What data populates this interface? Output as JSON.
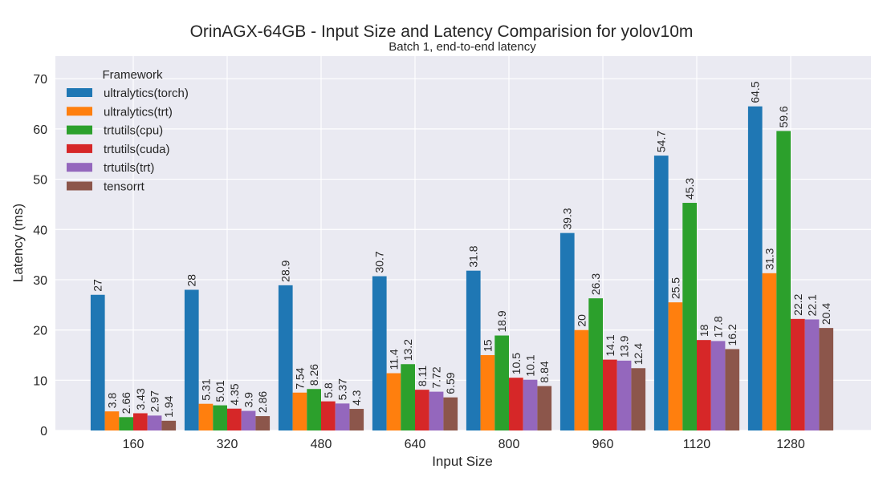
{
  "chart_data": {
    "type": "bar",
    "title": "OrinAGX-64GB - Input Size and Latency Comparision for yolov10m",
    "subtitle": "Batch 1, end-to-end latency",
    "xlabel": "Input Size",
    "ylabel": "Latency (ms)",
    "ylim": [
      0,
      74.5
    ],
    "yticks": [
      0,
      10,
      20,
      30,
      40,
      50,
      60,
      70
    ],
    "grid": true,
    "legend": {
      "title": "Framework",
      "placement": "top-left"
    },
    "categories": [
      "160",
      "320",
      "480",
      "640",
      "800",
      "960",
      "1120",
      "1280"
    ],
    "series": [
      {
        "name": "ultralytics(torch)",
        "color": "#1f77b4",
        "values": [
          27,
          28,
          28.9,
          30.7,
          31.8,
          39.3,
          54.7,
          64.5
        ],
        "labels": [
          "27",
          "28",
          "28.9",
          "30.7",
          "31.8",
          "39.3",
          "54.7",
          "64.5"
        ]
      },
      {
        "name": "ultralytics(trt)",
        "color": "#ff7f0e",
        "values": [
          3.8,
          5.31,
          7.54,
          11.4,
          15,
          20,
          25.5,
          31.3
        ],
        "labels": [
          "3.8",
          "5.31",
          "7.54",
          "11.4",
          "15",
          "20",
          "25.5",
          "31.3"
        ]
      },
      {
        "name": "trtutils(cpu)",
        "color": "#2ca02c",
        "values": [
          2.66,
          5.01,
          8.26,
          13.2,
          18.9,
          26.3,
          45.3,
          59.6
        ],
        "labels": [
          "2.66",
          "5.01",
          "8.26",
          "13.2",
          "18.9",
          "26.3",
          "45.3",
          "59.6"
        ]
      },
      {
        "name": "trtutils(cuda)",
        "color": "#d62728",
        "values": [
          3.43,
          4.35,
          5.8,
          8.11,
          10.5,
          14.1,
          18,
          22.2
        ],
        "labels": [
          "3.43",
          "4.35",
          "5.8",
          "8.11",
          "10.5",
          "14.1",
          "18",
          "22.2"
        ]
      },
      {
        "name": "trtutils(trt)",
        "color": "#9467bd",
        "values": [
          2.97,
          3.9,
          5.37,
          7.72,
          10.1,
          13.9,
          17.8,
          22.1
        ],
        "labels": [
          "2.97",
          "3.9",
          "5.37",
          "7.72",
          "10.1",
          "13.9",
          "17.8",
          "22.1"
        ]
      },
      {
        "name": "tensorrt",
        "color": "#8c564b",
        "values": [
          1.94,
          2.86,
          4.3,
          6.59,
          8.84,
          12.4,
          16.2,
          20.4
        ],
        "labels": [
          "1.94",
          "2.86",
          "4.3",
          "6.59",
          "8.84",
          "12.4",
          "16.2",
          "20.4"
        ]
      }
    ]
  }
}
